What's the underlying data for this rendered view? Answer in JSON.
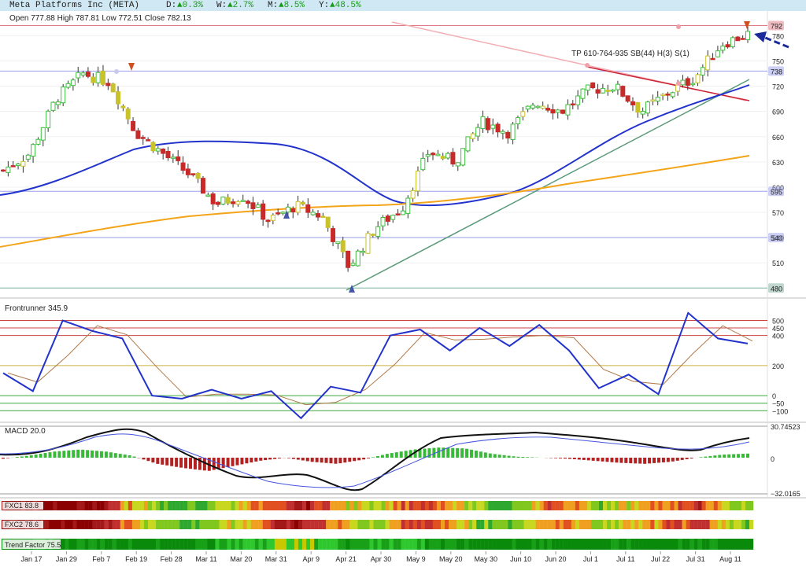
{
  "header": {
    "name": "Meta Platforms Inc (META)",
    "day_label": "D:",
    "day_value": "▲0.3%",
    "week_label": "W:",
    "week_value": "▲2.7%",
    "month_label": "M:",
    "month_value": "▲8.5%",
    "year_label": "Y:",
    "year_value": "▲48.5%"
  },
  "ohlc": {
    "text": "Open 777.88  High 787.81  Low 772.51  Close 782.13"
  },
  "chart_data": [
    {
      "type": "candlestick",
      "title": "Meta Platforms Inc (META)",
      "y_ticks": [
        780,
        750,
        720,
        690,
        660,
        630,
        600,
        570,
        540,
        510
      ],
      "ylim": [
        470,
        800
      ],
      "price_levels": [
        {
          "value": 792,
          "label": "792",
          "color": "#e07a85"
        },
        {
          "value": 738,
          "label": "738",
          "color": "#9aa0e8"
        },
        {
          "value": 595,
          "label": "595",
          "color": "#9aa0e8"
        },
        {
          "value": 540,
          "label": "540",
          "color": "#9aa0e8"
        },
        {
          "value": 480,
          "label": "480",
          "color": "#7fb0a0"
        }
      ],
      "annotation": "TP 610-764-935 SB(44) H(3) S(1)",
      "close_approx": [
        620,
        640,
        705,
        735,
        725,
        665,
        640,
        615,
        580,
        590,
        560,
        578,
        565,
        505,
        552,
        575,
        642,
        630,
        678,
        665,
        702,
        690,
        715,
        720,
        690,
        712,
        730,
        770,
        782
      ],
      "ma_50_approx": [
        590,
        600,
        645,
        652,
        652,
        648,
        625,
        590,
        572,
        570,
        588,
        600,
        618,
        640,
        665,
        690,
        705,
        720
      ],
      "ma_200_approx": [
        528,
        545,
        560,
        574,
        578,
        582,
        590,
        598,
        608,
        616,
        625,
        635
      ]
    },
    {
      "type": "line",
      "title": "Frontrunner 345.9",
      "y_ticks": [
        500,
        450,
        400,
        200,
        0,
        -50,
        -100
      ],
      "ylim": [
        -130,
        560
      ],
      "series": [
        {
          "name": "Frontrunner",
          "values": [
            150,
            30,
            500,
            430,
            380,
            0,
            -20,
            40,
            -20,
            30,
            -150,
            60,
            20,
            400,
            440,
            300,
            450,
            330,
            470,
            300,
            50,
            140,
            10,
            550,
            380,
            346
          ]
        }
      ]
    },
    {
      "type": "bar",
      "title": "MACD 20.0",
      "y_ticks": [
        30.74523,
        0,
        -32.0165
      ],
      "ylim": [
        -32.0165,
        30.74523
      ]
    },
    {
      "type": "heatmap",
      "rows": [
        {
          "label": "FXC1",
          "value": "83.8"
        },
        {
          "label": "FXC2",
          "value": "78.6"
        },
        {
          "label": "Trend Factor",
          "value": "75.5"
        }
      ]
    }
  ],
  "x_axis": {
    "labels": [
      "Jan 17",
      "Jan 29",
      "Feb 7",
      "Feb 19",
      "Feb 28",
      "Mar 11",
      "Mar 20",
      "Mar 31",
      "Apr 9",
      "Apr 21",
      "Apr 30",
      "May 9",
      "May 20",
      "May 30",
      "Jun 10",
      "Jun 20",
      "Jul 1",
      "Jul 11",
      "Jul 22",
      "Jul 31",
      "Aug 11"
    ]
  },
  "colors": {
    "up_candle": "#3fbf3f",
    "down_candle": "#c82a2a",
    "neutral_candle": "#c9c22a",
    "ma_50": "#2233cc",
    "ma_200": "#f4a418",
    "oscillator": "#2233cc",
    "header_bg": "#cfe8f3"
  }
}
